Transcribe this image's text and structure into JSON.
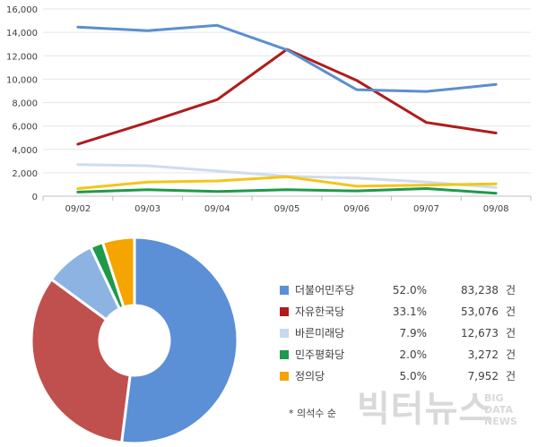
{
  "chart_data": [
    {
      "type": "line",
      "categories": [
        "09/02",
        "09/03",
        "09/04",
        "09/05",
        "09/06",
        "09/07",
        "09/08"
      ],
      "ylim": [
        0,
        16000
      ],
      "yticks": [
        0,
        2000,
        4000,
        6000,
        8000,
        10000,
        12000,
        14000,
        16000
      ],
      "ytick_labels": [
        "0",
        "2,000",
        "4,000",
        "6,000",
        "8,000",
        "10,000",
        "12,000",
        "14,000",
        "16,000"
      ],
      "grid": "horizontal",
      "series": [
        {
          "name": "더불어민주당",
          "color": "#5b8fcf",
          "values": [
            14450,
            14150,
            14600,
            12500,
            9100,
            8950,
            9550
          ]
        },
        {
          "name": "자유한국당",
          "color": "#b01c1c",
          "values": [
            4450,
            6300,
            8250,
            12550,
            9900,
            6300,
            5400
          ]
        },
        {
          "name": "바른미래당",
          "color": "#cfdcec",
          "values": [
            2700,
            2600,
            2150,
            1700,
            1550,
            1200,
            750
          ]
        },
        {
          "name": "민주평화당",
          "color": "#1f9a4a",
          "values": [
            350,
            550,
            400,
            550,
            450,
            650,
            250
          ]
        },
        {
          "name": "정의당",
          "color": "#f5c518",
          "values": [
            650,
            1200,
            1300,
            1650,
            850,
            950,
            1050
          ]
        }
      ]
    },
    {
      "type": "pie",
      "donut": true,
      "start": "top",
      "direction": "clockwise",
      "slices": [
        {
          "name": "더불어민주당",
          "percent": "52.0%",
          "count": "83,238",
          "unit": "건",
          "value": 52.0,
          "color": "#5b8fd6",
          "legend_color": "#5b8fd6"
        },
        {
          "name": "자유한국당",
          "percent": "33.1%",
          "count": "53,076",
          "unit": "건",
          "value": 33.1,
          "color": "#c0504d",
          "legend_color": "#b01c1c"
        },
        {
          "name": "바른미래당",
          "percent": "7.9%",
          "count": "12,673",
          "unit": "건",
          "value": 7.9,
          "color": "#8db3e2",
          "legend_color": "#c6d9f0"
        },
        {
          "name": "민주평화당",
          "percent": "2.0%",
          "count": "3,272",
          "unit": "건",
          "value": 2.0,
          "color": "#1f9a4a",
          "legend_color": "#1f9a4a"
        },
        {
          "name": "정의당",
          "percent": "5.0%",
          "count": "7,952",
          "unit": "건",
          "value": 5.0,
          "color": "#f5a400",
          "legend_color": "#f5a400"
        }
      ],
      "note": "* 의석수 순"
    }
  ],
  "watermark": {
    "main": "빅터뉴스",
    "line1": "BIG",
    "line2": "DATA",
    "line3": "NEWS",
    "color": "#d9d9d9"
  }
}
